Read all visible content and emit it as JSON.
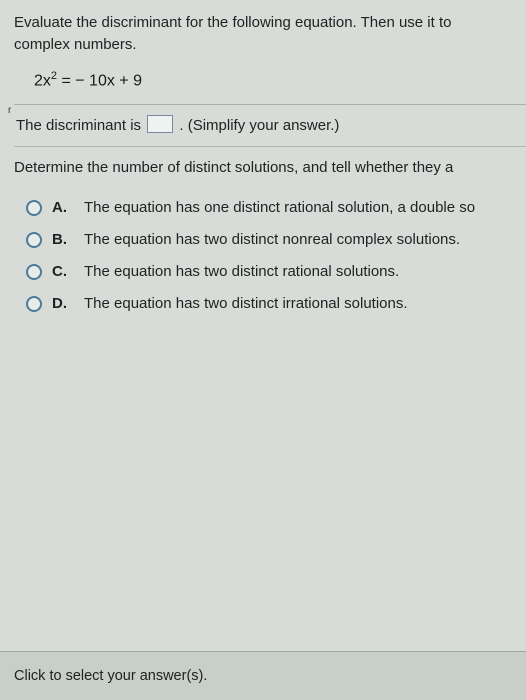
{
  "question": {
    "instruction_line1": "Evaluate the discriminant for the following equation. Then use it to",
    "instruction_line2": "complex numbers.",
    "equation_lhs": "2x",
    "equation_exp": "2",
    "equation_rhs": " = − 10x + 9"
  },
  "discriminant_row": {
    "prefix": "The discriminant is ",
    "suffix": ". (Simplify your answer.)"
  },
  "subquestion": "Determine the number of distinct solutions, and tell whether they a",
  "options": [
    {
      "letter": "A.",
      "text": "The equation has one distinct rational solution, a double so"
    },
    {
      "letter": "B.",
      "text": "The equation has two distinct nonreal complex solutions."
    },
    {
      "letter": "C.",
      "text": "The equation has two distinct rational solutions."
    },
    {
      "letter": "D.",
      "text": "The equation has two distinct irrational solutions."
    }
  ],
  "footer": "Click to select your answer(s).",
  "colors": {
    "page_bg": "#d8dcd8",
    "footer_bg": "#c8cec8",
    "radio_border": "#4a7a9a",
    "box_border": "#7a8a9a"
  }
}
